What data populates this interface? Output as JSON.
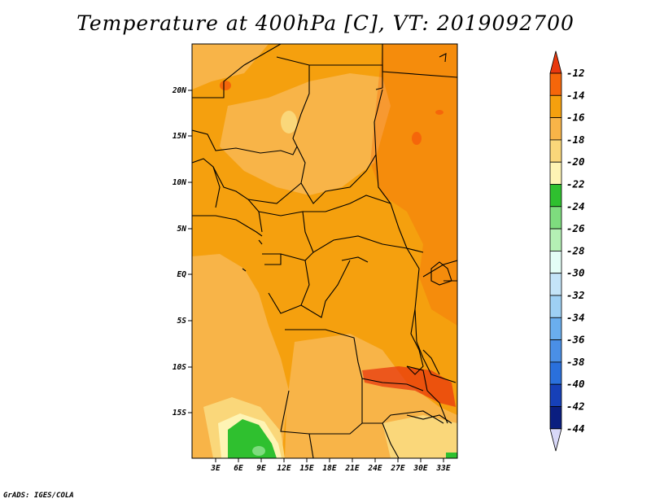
{
  "title": "Temperature at 400hPa [C], VT: 2019092700",
  "credit": "GrADS: IGES/COLA",
  "map": {
    "lat_labels": [
      "20N",
      "15N",
      "10N",
      "5N",
      "EQ",
      "5S",
      "10S",
      "15S"
    ],
    "lon_labels": [
      "3E",
      "6E",
      "9E",
      "12E",
      "15E",
      "18E",
      "21E",
      "24E",
      "27E",
      "30E",
      "33E"
    ]
  },
  "colorbar": {
    "labels": [
      "-12",
      "-14",
      "-16",
      "-18",
      "-20",
      "-22",
      "-24",
      "-26",
      "-28",
      "-30",
      "-32",
      "-34",
      "-36",
      "-38",
      "-40",
      "-42",
      "-44"
    ],
    "colors": [
      "#e8380e",
      "#f5660a",
      "#f5a00e",
      "#f8b448",
      "#fad77a",
      "#fef4b4",
      "#2fc02f",
      "#7edc7e",
      "#b4f0b4",
      "#e4fef6",
      "#c4e4f8",
      "#9ed0f4",
      "#6aaeee",
      "#4a8fe6",
      "#2a70dc",
      "#1640b8",
      "#0a1e80",
      "#d8d8f8"
    ]
  }
}
